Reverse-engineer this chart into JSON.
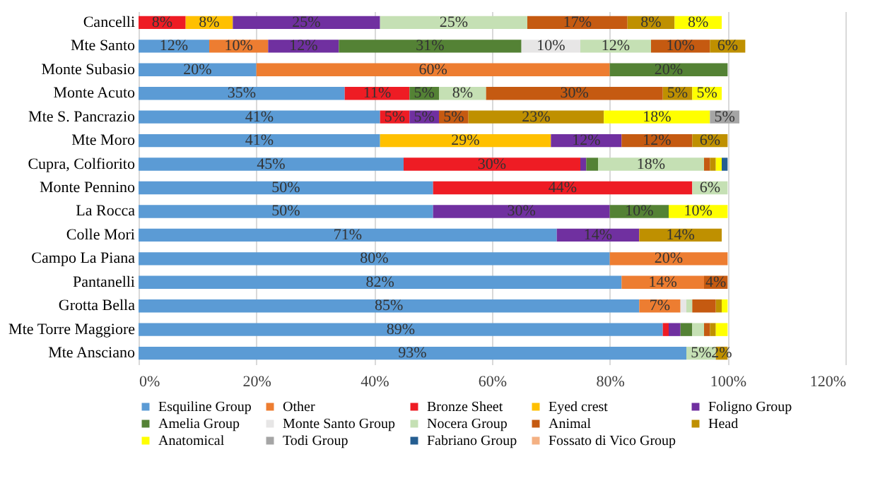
{
  "chart_data": {
    "type": "bar",
    "orientation": "horizontal",
    "stacked": true,
    "categories": [
      "Cancelli",
      "Mte Santo",
      "Monte Subasio",
      "Monte Acuto",
      "Mte S. Pancrazio",
      "Mte Moro",
      "Cupra, Colfiorito",
      "Monte Pennino",
      "La Rocca",
      "Colle Mori",
      "Campo La Piana",
      "Pantanelli",
      "Grotta Bella",
      "Mte Torre Maggiore",
      "Mte Ansciano"
    ],
    "xlim": [
      0,
      120
    ],
    "xticks": [
      {
        "value": 0,
        "label": "0%"
      },
      {
        "value": 20,
        "label": "20%"
      },
      {
        "value": 40,
        "label": "40%"
      },
      {
        "value": 60,
        "label": "60%"
      },
      {
        "value": 80,
        "label": "80%"
      },
      {
        "value": 100,
        "label": "100%"
      },
      {
        "value": 120,
        "label": "120%"
      }
    ],
    "grid": "x",
    "legend": "bottom",
    "series": [
      {
        "name": "Esquiline Group",
        "color": "#5b9bd5",
        "values": [
          null,
          12,
          20,
          35,
          41,
          41,
          45,
          50,
          50,
          71,
          80,
          82,
          85,
          89,
          93
        ],
        "value_labels": [
          null,
          "12%",
          "20%",
          "35%",
          "41%",
          "41%",
          "45%",
          "50%",
          "50%",
          "71%",
          "80%",
          "82%",
          "85%",
          "89%",
          "93%"
        ]
      },
      {
        "name": "Other",
        "color": "#ed7d31",
        "values": [
          null,
          10,
          60,
          null,
          null,
          null,
          null,
          null,
          null,
          null,
          20,
          14,
          7,
          null,
          null
        ],
        "value_labels": [
          null,
          "10%",
          "60%",
          null,
          null,
          null,
          null,
          null,
          null,
          null,
          "20%",
          "14%",
          "7%",
          null,
          null
        ]
      },
      {
        "name": "Bronze Sheet",
        "color": "#ee1c24",
        "values": [
          8,
          null,
          null,
          11,
          5,
          null,
          30,
          44,
          null,
          null,
          null,
          null,
          null,
          1,
          null
        ],
        "value_labels": [
          "8%",
          null,
          null,
          "11%",
          "5%",
          null,
          "30%",
          "44%",
          null,
          null,
          null,
          null,
          null,
          null,
          null
        ]
      },
      {
        "name": "Eyed crest",
        "color": "#ffc000",
        "values": [
          8,
          null,
          null,
          null,
          null,
          29,
          null,
          null,
          null,
          null,
          null,
          null,
          null,
          null,
          null
        ],
        "value_labels": [
          "8%",
          null,
          null,
          null,
          null,
          "29%",
          null,
          null,
          null,
          null,
          null,
          null,
          null,
          null,
          null
        ]
      },
      {
        "name": "Foligno Group",
        "color": "#7030a0",
        "values": [
          25,
          12,
          null,
          null,
          5,
          12,
          1,
          null,
          30,
          14,
          null,
          null,
          null,
          2,
          null
        ],
        "value_labels": [
          "25%",
          "12%",
          null,
          null,
          "5%",
          "12%",
          null,
          null,
          "30%",
          "14%",
          null,
          null,
          null,
          null,
          null
        ]
      },
      {
        "name": "Amelia Group",
        "color": "#548235",
        "values": [
          null,
          31,
          20,
          5,
          null,
          null,
          2,
          null,
          10,
          null,
          null,
          null,
          null,
          2,
          null
        ],
        "value_labels": [
          null,
          "31%",
          "20%",
          "5%",
          null,
          null,
          null,
          null,
          "10%",
          null,
          null,
          null,
          null,
          null,
          null
        ]
      },
      {
        "name": "Monte Santo Group",
        "color": "#e7e6e6",
        "values": [
          null,
          10,
          null,
          null,
          null,
          null,
          null,
          null,
          null,
          null,
          null,
          null,
          1,
          null,
          null
        ],
        "value_labels": [
          null,
          "10%",
          null,
          null,
          null,
          null,
          null,
          null,
          null,
          null,
          null,
          null,
          null,
          null,
          null
        ]
      },
      {
        "name": "Nocera Group",
        "color": "#c5e0b4",
        "values": [
          25,
          12,
          null,
          8,
          null,
          null,
          18,
          6,
          null,
          null,
          null,
          null,
          1,
          2,
          5
        ],
        "value_labels": [
          "25%",
          "12%",
          null,
          "8%",
          null,
          null,
          "18%",
          "6%",
          null,
          null,
          null,
          null,
          null,
          null,
          "5%"
        ]
      },
      {
        "name": "Animal",
        "color": "#c55a11",
        "values": [
          17,
          10,
          null,
          30,
          5,
          12,
          1,
          null,
          null,
          null,
          null,
          4,
          4,
          1,
          null
        ],
        "value_labels": [
          "17%",
          "10%",
          null,
          "30%",
          "5%",
          "12%",
          null,
          null,
          null,
          null,
          null,
          "4%",
          null,
          null,
          null
        ]
      },
      {
        "name": "Head",
        "color": "#bf9000",
        "values": [
          8,
          6,
          null,
          5,
          23,
          6,
          1,
          null,
          null,
          14,
          null,
          null,
          1,
          1,
          2
        ],
        "value_labels": [
          "8%",
          "6%",
          null,
          "5%",
          "23%",
          "6%",
          null,
          null,
          null,
          "14%",
          null,
          null,
          null,
          null,
          "2%"
        ]
      },
      {
        "name": "Anatomical",
        "color": "#ffff00",
        "values": [
          8,
          null,
          null,
          5,
          18,
          null,
          1,
          null,
          10,
          null,
          null,
          null,
          1,
          2,
          null
        ],
        "value_labels": [
          "8%",
          null,
          null,
          "5%",
          "18%",
          null,
          null,
          null,
          "10%",
          null,
          null,
          null,
          null,
          null,
          null
        ]
      },
      {
        "name": "Todi Group",
        "color": "#a5a5a5",
        "values": [
          null,
          null,
          null,
          null,
          5,
          null,
          null,
          null,
          null,
          null,
          null,
          null,
          null,
          null,
          null
        ],
        "value_labels": [
          null,
          null,
          null,
          null,
          "5%",
          null,
          null,
          null,
          null,
          null,
          null,
          null,
          null,
          null,
          null
        ]
      },
      {
        "name": "Fabriano Group",
        "color": "#255e91",
        "values": [
          null,
          null,
          null,
          null,
          null,
          null,
          1,
          null,
          null,
          null,
          null,
          null,
          null,
          null,
          null
        ]
      },
      {
        "name": "Fossato di Vico Group",
        "color": "#f4b183",
        "values": [
          null,
          null,
          null,
          null,
          null,
          null,
          null,
          null,
          null,
          null,
          null,
          null,
          null,
          null,
          null
        ]
      }
    ]
  }
}
